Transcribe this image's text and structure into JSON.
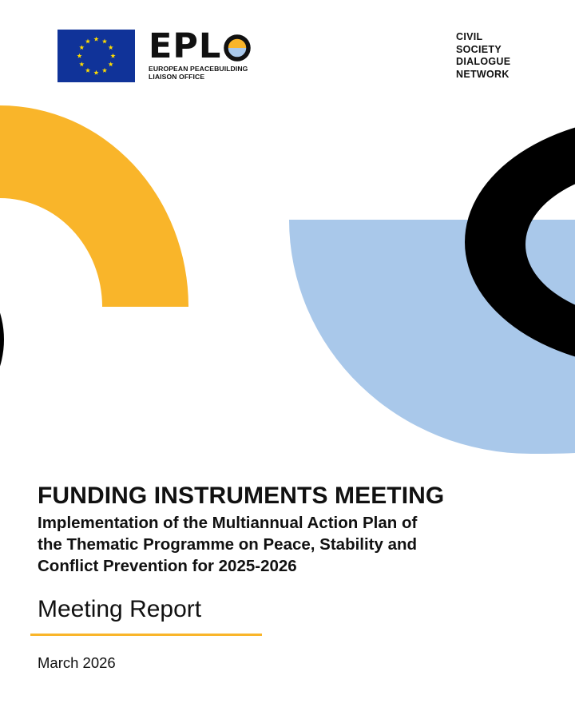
{
  "header": {
    "eplo_wordmark": "EPLO",
    "eplo_subtitle_line1": "EUROPEAN PEACEBUILDING",
    "eplo_subtitle_line2": "LIAISON OFFICE",
    "csdn_lines": [
      "CIVIL",
      "SOCIETY",
      "DIALOGUE",
      "NETWORK"
    ]
  },
  "title": {
    "main": "FUNDING INSTRUMENTS MEETING",
    "subtitle_line1": "Implementation of the Multiannual Action Plan of",
    "subtitle_line2": "the Thematic Programme on Peace, Stability and",
    "subtitle_line3": "Conflict Prevention for 2025-2026",
    "report_type": "Meeting Report",
    "date": "March 2026"
  },
  "colors": {
    "yellow": "#f9b52a",
    "black": "#000000",
    "light_blue": "#a9c8ea",
    "eu_blue": "#103399",
    "eu_star": "#ffdd00"
  },
  "icons": {
    "eu_flag": "eu-flag-icon",
    "eplo_o": "half-filled-circle-icon"
  }
}
